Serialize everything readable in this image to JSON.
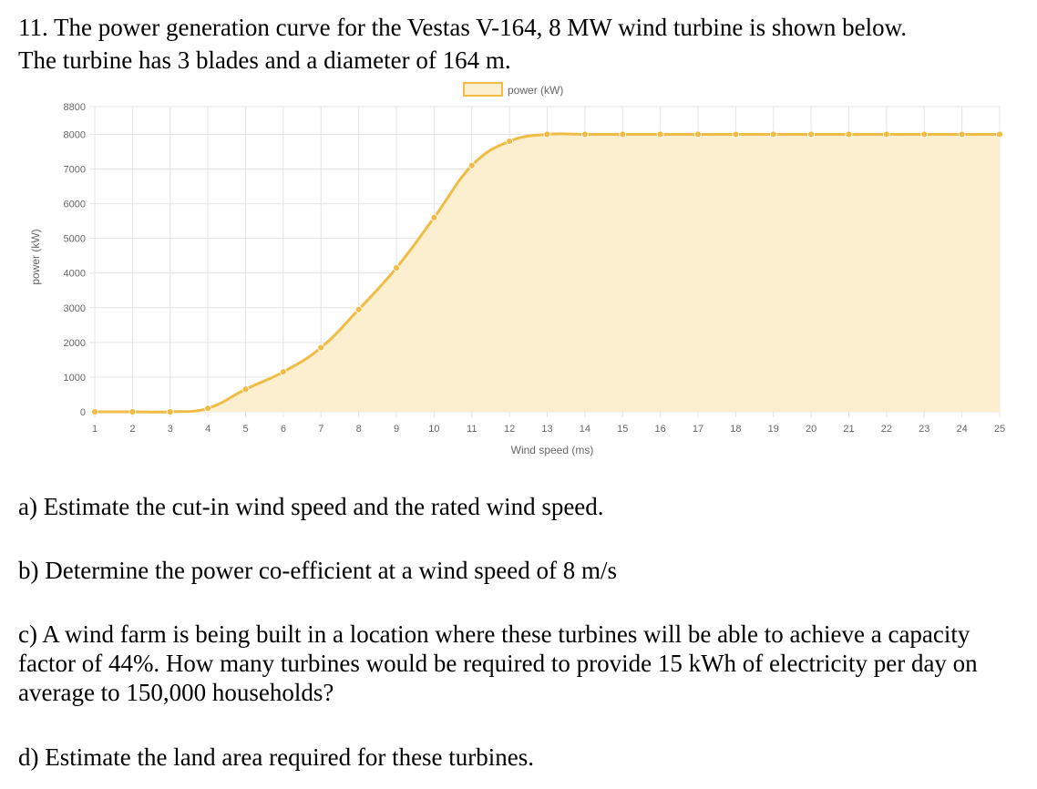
{
  "question": {
    "line1": "11. The power generation curve for the Vestas V-164, 8 MW wind turbine is shown below.",
    "line2": "The turbine has 3 blades and a diameter of 164 m."
  },
  "parts": {
    "a": "a) Estimate the cut-in wind speed and the rated wind speed.",
    "b": "b) Determine the power co-efficient at a wind speed of 8 m/s",
    "c": "c) A wind farm is being built in a location where these turbines will be able to achieve a capacity factor of 44%. How many turbines would be required to provide 15 kWh of electricity per day on average to 150,000 households?",
    "d": "d) Estimate the land area required for these turbines."
  },
  "chart_data": {
    "type": "area",
    "title": "",
    "xlabel": "Wind speed (ms)",
    "ylabel": "power (kW)",
    "legend": {
      "placement": "top-center",
      "entries": [
        "power (kW)"
      ]
    },
    "grid": true,
    "colors": {
      "line": "#f0bc45",
      "fill": "#fcefcf",
      "grid": "#e4e4e4",
      "tick": "#666666"
    },
    "xlim": [
      1,
      25
    ],
    "ylim": [
      0,
      8800
    ],
    "x_ticks": [
      "1",
      "2",
      "3",
      "4",
      "5",
      "6",
      "7",
      "8",
      "9",
      "10",
      "11",
      "12",
      "13",
      "14",
      "15",
      "16",
      "17",
      "18",
      "19",
      "20",
      "21",
      "22",
      "23",
      "24",
      "25"
    ],
    "y_ticks": [
      "0",
      "1000",
      "2000",
      "3000",
      "4000",
      "5000",
      "6000",
      "7000",
      "8000",
      "8800"
    ],
    "series": [
      {
        "name": "power (kW)",
        "x": [
          1,
          2,
          3,
          4,
          5,
          6,
          7,
          8,
          9,
          10,
          11,
          12,
          13,
          14,
          15,
          16,
          17,
          18,
          19,
          20,
          21,
          22,
          23,
          24,
          25
        ],
        "y": [
          0,
          0,
          0,
          100,
          650,
          1150,
          1850,
          2950,
          4150,
          5600,
          7100,
          7800,
          8000,
          8000,
          8000,
          8000,
          8000,
          8000,
          8000,
          8000,
          8000,
          8000,
          8000,
          8000,
          8000
        ]
      }
    ]
  }
}
